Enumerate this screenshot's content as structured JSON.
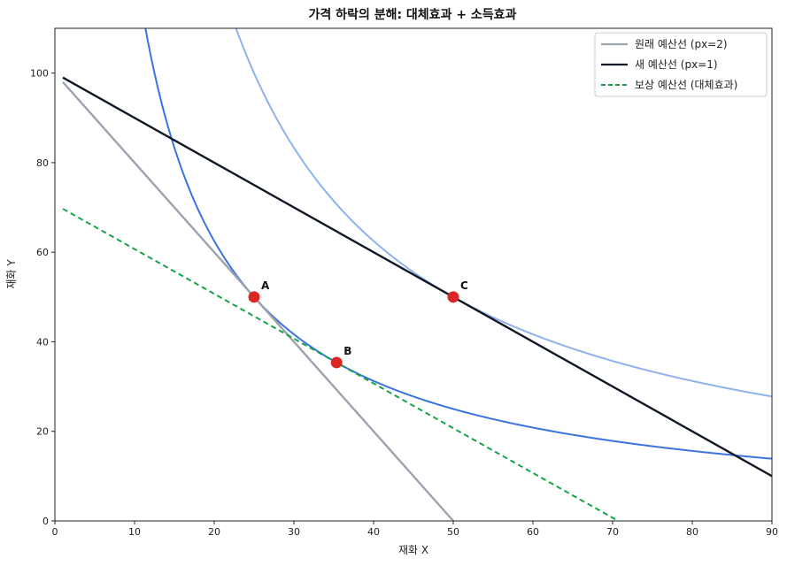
{
  "chart_data": {
    "type": "line",
    "title": "가격 하락의 분해: 대체효과 + 소득효과",
    "xlabel": "재화 X",
    "ylabel": "재화 Y",
    "xlim": [
      0,
      90
    ],
    "ylim": [
      0,
      110
    ],
    "xticks": [
      0,
      10,
      20,
      30,
      40,
      50,
      60,
      70,
      80,
      90
    ],
    "yticks": [
      0,
      20,
      40,
      60,
      80,
      100
    ],
    "grid": false,
    "legend_position": "top-right",
    "colors": {
      "original_budget": "#9ca3af",
      "new_budget": "#111827",
      "compensated_budget": "#16a34a",
      "indifference_low": "#3b74e0",
      "indifference_high": "#8fb2ee",
      "points": "#dc2626"
    },
    "series": [
      {
        "name": "원래 예산선 (px=2)",
        "kind": "budget",
        "style": "solid",
        "x": [
          1,
          50
        ],
        "y": [
          98,
          0
        ]
      },
      {
        "name": "새 예산선 (px=1)",
        "kind": "budget",
        "style": "solid",
        "x": [
          1,
          90
        ],
        "y": [
          99,
          10
        ]
      },
      {
        "name": "보상 예산선 (대체효과)",
        "kind": "budget",
        "style": "dashed",
        "x": [
          1,
          70.7
        ],
        "y": [
          69.7,
          0
        ]
      }
    ],
    "indifference_curves": [
      {
        "utility": 1250,
        "x_range": [
          11.3,
          90
        ],
        "formula": "y = 1250 / x"
      },
      {
        "utility": 2500,
        "x_range": [
          22.7,
          90
        ],
        "formula": "y = 2500 / x"
      }
    ],
    "points": [
      {
        "label": "A",
        "x": 25,
        "y": 50
      },
      {
        "label": "B",
        "x": 35.36,
        "y": 35.36
      },
      {
        "label": "C",
        "x": 50,
        "y": 50
      }
    ]
  }
}
